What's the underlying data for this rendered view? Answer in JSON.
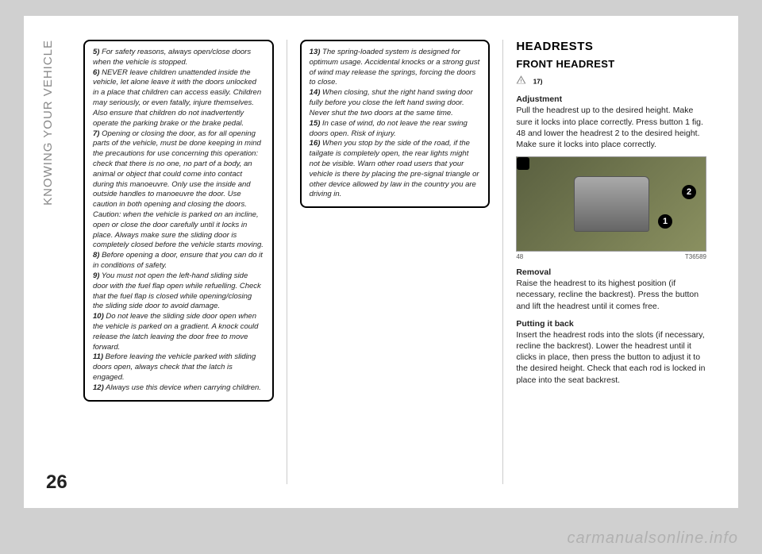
{
  "sidebar_label": "KNOWING YOUR VEHICLE",
  "page_number": "26",
  "watermark": "carmanualsonline.info",
  "col1": {
    "items": [
      {
        "n": "5)",
        "t": "For safety reasons, always open/close doors when the vehicle is stopped."
      },
      {
        "n": "6)",
        "t": "NEVER leave children unattended inside the vehicle, let alone leave it with the doors unlocked in a place that children can access easily. Children may seriously, or even fatally, injure themselves. Also ensure that children do not inadvertently operate the parking brake or the brake pedal."
      },
      {
        "n": "7)",
        "t": "Opening or closing the door, as for all opening parts of the vehicle, must be done keeping in mind the precautions for use concerning this operation: check that there is no one, no part of a body, an animal or object that could come into contact during this manoeuvre. Only use the inside and outside handles to manoeuvre the door. Use caution in both opening and closing the doors. Caution: when the vehicle is parked on an incline, open or close the door carefully until it locks in place. Always make sure the sliding door is completely closed before the vehicle starts moving."
      },
      {
        "n": "8)",
        "t": "Before opening a door, ensure that you can do it in conditions of safety."
      },
      {
        "n": "9)",
        "t": "You must not open the left-hand sliding side door with the fuel flap open while refuelling. Check that the fuel flap is closed while opening/closing the sliding side door to avoid damage."
      },
      {
        "n": "10)",
        "t": "Do not leave the sliding side door open when the vehicle is parked on a gradient. A knock could release the latch leaving the door free to move forward."
      },
      {
        "n": "11)",
        "t": "Before leaving the vehicle parked with sliding doors open, always check that the latch is engaged."
      },
      {
        "n": "12)",
        "t": "Always use this device when carrying children."
      }
    ]
  },
  "col2": {
    "items": [
      {
        "n": "13)",
        "t": "The spring-loaded system is designed for optimum usage. Accidental knocks or a strong gust of wind may release the springs, forcing the doors to close."
      },
      {
        "n": "14)",
        "t": "When closing, shut the right hand swing door fully before you close the left hand swing door. Never shut the two doors at the same time."
      },
      {
        "n": "15)",
        "t": "In case of wind, do not leave the rear swing doors open. Risk of injury."
      },
      {
        "n": "16)",
        "t": "When you stop by the side of the road, if the tailgate is completely open, the rear lights might not be visible. Warn other road users that your vehicle is there by placing the pre-signal triangle or other device allowed by law in the country you are driving in."
      }
    ]
  },
  "col3": {
    "h1": "HEADRESTS",
    "h2": "FRONT HEADREST",
    "warn_ref": "17)",
    "adj_title": "Adjustment",
    "adj_text": "Pull the headrest up to the desired height. Make sure it locks into place correctly. Press button 1 fig. 48 and lower the headrest 2 to the desired height. Make sure it locks into place correctly.",
    "fig_num": "48",
    "fig_code": "T36589",
    "rem_title": "Removal",
    "rem_text": "Raise the headrest to its highest position (if necessary, recline the backrest). Press the button and lift the headrest until it comes free.",
    "put_title": "Putting it back",
    "put_text": "Insert the headrest rods into the slots (if necessary, recline the backrest). Lower the headrest until it clicks in place, then press the button to adjust it to the desired height. Check that each rod is locked in place into the seat backrest."
  }
}
